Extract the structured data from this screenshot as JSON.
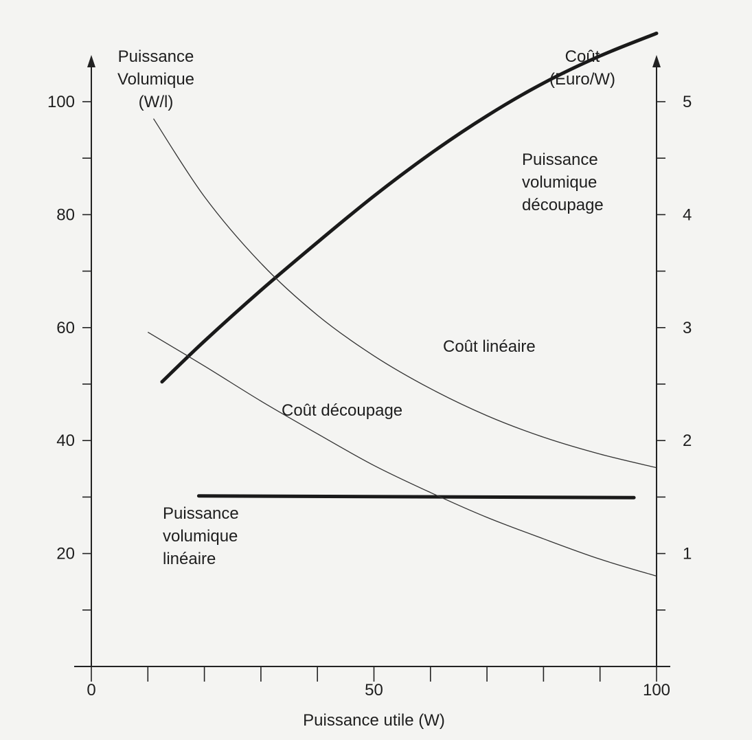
{
  "chart_data": {
    "type": "line",
    "title": "",
    "xlabel": "Puissance utile (W)",
    "ylabel_left": [
      "Puissance",
      "Volumique",
      "(W/l)"
    ],
    "ylabel_right": [
      "Coût",
      "(Euro/W)"
    ],
    "xlim": [
      0,
      100
    ],
    "ylim_left": [
      0,
      100
    ],
    "ylim_right": [
      0,
      5
    ],
    "x_tick_labels": [
      "0",
      "50",
      "100"
    ],
    "x_tick_values": [
      0,
      50,
      100
    ],
    "y_left_tick_labels": [
      "20",
      "40",
      "60",
      "80",
      "100"
    ],
    "y_left_tick_values": [
      20,
      40,
      60,
      80,
      100
    ],
    "y_right_tick_labels": [
      "1",
      "2",
      "3",
      "4",
      "5"
    ],
    "y_right_tick_values": [
      1,
      2,
      3,
      4,
      5
    ],
    "grid": false,
    "series": [
      {
        "name": "Puissance volumique découpage",
        "label_lines": [
          "Puissance",
          "volumique",
          "découpage"
        ],
        "axis": "left",
        "style": "thick",
        "x": [
          12.5,
          20,
          30,
          40,
          50,
          60,
          70,
          80,
          90,
          100
        ],
        "y": [
          50.4,
          57.6,
          66.6,
          75.1,
          83.3,
          90.8,
          97.5,
          103.3,
          108.1,
          112.1
        ]
      },
      {
        "name": "Puissance volumique linéaire",
        "label_lines": [
          "Puissance",
          "volumique",
          "linéaire"
        ],
        "axis": "left",
        "style": "thick",
        "x": [
          19,
          96
        ],
        "y": [
          30.2,
          29.9
        ]
      },
      {
        "name": "Coût linéaire",
        "label_lines": [
          "Coût linéaire"
        ],
        "axis": "right",
        "style": "thin",
        "x": [
          11,
          20,
          30,
          40,
          50,
          60,
          70,
          80,
          90,
          100
        ],
        "y": [
          4.85,
          4.16,
          3.57,
          3.11,
          2.75,
          2.46,
          2.22,
          2.03,
          1.88,
          1.76
        ]
      },
      {
        "name": "Coût découpage",
        "label_lines": [
          "Coût découpage"
        ],
        "axis": "right",
        "style": "thin",
        "x": [
          10,
          20,
          30,
          40,
          50,
          60,
          70,
          80,
          90,
          100
        ],
        "y": [
          2.96,
          2.66,
          2.35,
          2.06,
          1.78,
          1.54,
          1.32,
          1.13,
          0.95,
          0.8
        ]
      }
    ]
  }
}
